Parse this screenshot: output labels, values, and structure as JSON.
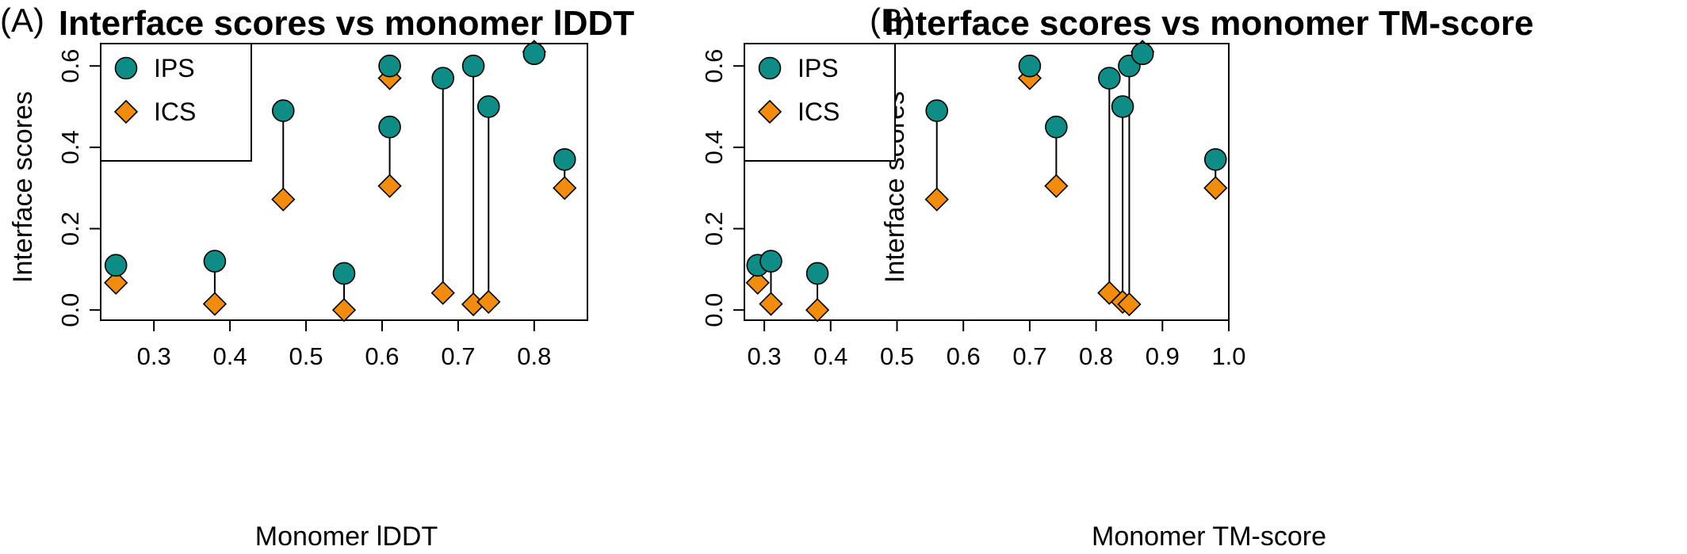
{
  "colors": {
    "ips": "#0E8C85",
    "ics": "#F28C0F",
    "stroke": "#000000"
  },
  "chart_data": [
    {
      "type": "scatter",
      "panel_label": "(A)",
      "title": "Interface scores vs monomer lDDT",
      "xlabel": "Monomer lDDT",
      "ylabel": "Interface scores",
      "xlim": [
        0.23,
        0.87
      ],
      "ylim": [
        -0.025,
        0.655
      ],
      "xticks": [
        "0.3",
        "0.4",
        "0.5",
        "0.6",
        "0.7",
        "0.8"
      ],
      "yticks": [
        "0.0",
        "0.2",
        "0.4",
        "0.6"
      ],
      "legend_position": "top-left",
      "segments": true,
      "x": [
        0.25,
        0.38,
        0.47,
        0.55,
        0.61,
        0.61,
        0.68,
        0.72,
        0.74,
        0.8,
        0.84
      ],
      "series": [
        {
          "name": "IPS",
          "marker": "circle",
          "color": "#0E8C85",
          "values": [
            0.11,
            0.12,
            0.49,
            0.09,
            0.45,
            0.6,
            0.57,
            0.6,
            0.5,
            0.63,
            0.37
          ]
        },
        {
          "name": "ICS",
          "marker": "diamond",
          "color": "#F28C0F",
          "values": [
            0.067,
            0.015,
            0.272,
            0.0,
            0.305,
            0.57,
            0.042,
            0.014,
            0.02,
            0.635,
            0.3
          ]
        }
      ]
    },
    {
      "type": "scatter",
      "panel_label": "(B)",
      "title": "Interface scores vs monomer TM-score",
      "xlabel": "Monomer TM-score",
      "ylabel": "Interface scores",
      "xlim": [
        0.27,
        1.0
      ],
      "ylim": [
        -0.025,
        0.655
      ],
      "xticks": [
        "0.3",
        "0.4",
        "0.5",
        "0.6",
        "0.7",
        "0.8",
        "0.9",
        "1.0"
      ],
      "yticks": [
        "0.0",
        "0.2",
        "0.4",
        "0.6"
      ],
      "legend_position": "top-left",
      "segments": true,
      "x": [
        0.29,
        0.31,
        0.38,
        0.56,
        0.7,
        0.74,
        0.82,
        0.84,
        0.85,
        0.87,
        0.98
      ],
      "series": [
        {
          "name": "IPS",
          "marker": "circle",
          "color": "#0E8C85",
          "values": [
            0.11,
            0.12,
            0.09,
            0.49,
            0.6,
            0.45,
            0.57,
            0.5,
            0.6,
            0.63,
            0.37
          ]
        },
        {
          "name": "ICS",
          "marker": "diamond",
          "color": "#F28C0F",
          "values": [
            0.067,
            0.015,
            0.0,
            0.272,
            0.57,
            0.305,
            0.042,
            0.02,
            0.014,
            0.635,
            0.3
          ]
        }
      ]
    }
  ]
}
